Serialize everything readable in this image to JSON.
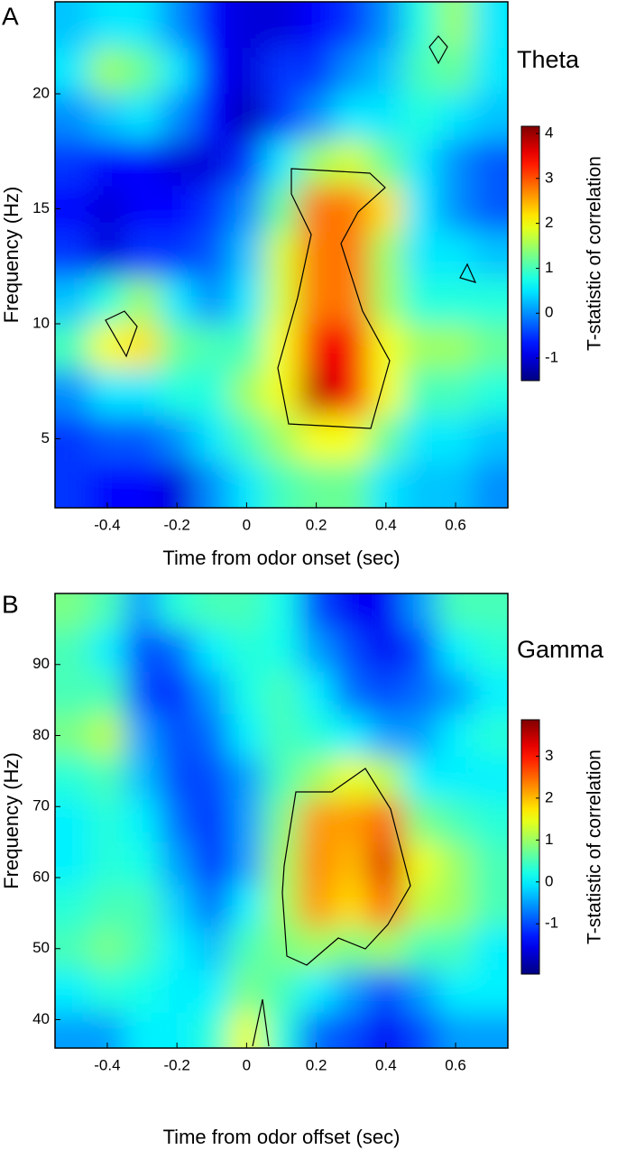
{
  "chart_data": [
    {
      "type": "heatmap",
      "panel": "A",
      "band_label": "Theta",
      "x_label": "Time from odor onset (sec)",
      "y_label": "Frequency (Hz)",
      "colorbar_label": "T-statistic of correlation",
      "colormap": "jet",
      "x": [
        -0.5,
        -0.4,
        -0.3,
        -0.2,
        -0.1,
        0,
        0.1,
        0.2,
        0.3,
        0.4,
        0.5,
        0.6,
        0.7
      ],
      "y": [
        23,
        21,
        19,
        17,
        15,
        13,
        11,
        9,
        7,
        5,
        3
      ],
      "z": [
        [
          0.3,
          0.5,
          0.5,
          0,
          -0.8,
          -1,
          -1,
          -0.8,
          -0.5,
          0,
          0.8,
          1.5,
          0.5
        ],
        [
          0.5,
          1.5,
          1.2,
          0.5,
          -0.8,
          -1,
          -0.5,
          -0.5,
          0,
          0.3,
          1,
          1.2,
          0.5
        ],
        [
          0,
          0.3,
          0.5,
          0,
          -0.8,
          -1.2,
          -0.5,
          0,
          0.5,
          0.5,
          0.8,
          0.5,
          0.3
        ],
        [
          -0.5,
          -0.8,
          -0.8,
          -1,
          -1,
          -0.5,
          0.5,
          1.5,
          1.8,
          1.2,
          0.5,
          0,
          -0.3
        ],
        [
          -0.8,
          -1,
          -0.8,
          -0.8,
          -0.5,
          0,
          1.2,
          2.8,
          2.8,
          2.2,
          0.5,
          0,
          -0.3
        ],
        [
          -0.5,
          -1,
          -0.5,
          -0.5,
          -0.3,
          0.3,
          1.8,
          2.8,
          2.8,
          1.5,
          0.5,
          0.5,
          0.3
        ],
        [
          0.3,
          0.8,
          1.5,
          0.5,
          0,
          0.5,
          1.8,
          2.8,
          2.8,
          1.5,
          0.8,
          0.8,
          0.8
        ],
        [
          1,
          2,
          2.2,
          1.2,
          1,
          1,
          2,
          3.5,
          3.5,
          2,
          1.5,
          1.5,
          1.2
        ],
        [
          0,
          0.5,
          0.5,
          0.8,
          0.8,
          1.5,
          2,
          3.8,
          3.5,
          2,
          1,
          1,
          0.8
        ],
        [
          -0.5,
          -0.3,
          -0.3,
          0,
          0.5,
          1,
          1.5,
          2,
          2,
          1.2,
          0.5,
          0.5,
          0.3
        ],
        [
          -0.5,
          -0.8,
          -0.8,
          -1,
          0,
          0.5,
          1,
          1.2,
          1.2,
          0.5,
          0.3,
          0.3,
          0
        ]
      ],
      "xlim": [
        -0.55,
        0.75
      ],
      "ylim": [
        2,
        24
      ],
      "xticks": [
        -0.4,
        -0.2,
        0,
        0.2,
        0.4,
        0.6
      ],
      "yticks": [
        5,
        10,
        15,
        20
      ],
      "clim": [
        -1.5,
        4.16
      ],
      "cticks": [
        -1,
        0,
        1,
        2,
        3,
        4
      ]
    },
    {
      "type": "heatmap",
      "panel": "B",
      "band_label": "Gamma",
      "x_label": "Time from odor offset (sec)",
      "y_label": "Frequency (Hz)",
      "colorbar_label": "T-statistic of correlation",
      "colormap": "jet",
      "x": [
        -0.5,
        -0.4,
        -0.3,
        -0.2,
        -0.1,
        0,
        0.1,
        0.2,
        0.3,
        0.4,
        0.5,
        0.6,
        0.7
      ],
      "y": [
        98,
        92,
        86,
        80,
        74,
        68,
        62,
        56,
        50,
        44,
        38
      ],
      "z": [
        [
          0.8,
          0.5,
          -0.5,
          0.3,
          0.5,
          0.5,
          0.2,
          -1,
          -1.5,
          -1.5,
          -0.5,
          0.5,
          0.5
        ],
        [
          0.5,
          0,
          -1,
          -0.8,
          0,
          0.3,
          0.2,
          -0.5,
          -1,
          -1.5,
          -1,
          0,
          0.3
        ],
        [
          0.5,
          0.5,
          -1,
          -1.2,
          -0.5,
          0.2,
          0.5,
          0,
          -0.8,
          -1,
          -0.8,
          -0.5,
          0
        ],
        [
          0.8,
          1.2,
          -0.5,
          -1,
          -0.8,
          0,
          0.5,
          0.3,
          0,
          -0.5,
          -0.5,
          0,
          0.3
        ],
        [
          0.3,
          0.5,
          -0.3,
          -1,
          -1,
          -0.5,
          0.5,
          1,
          1.5,
          1.2,
          0,
          0,
          0
        ],
        [
          0,
          0.3,
          0,
          -0.8,
          -1.2,
          -0.5,
          0.8,
          2.2,
          2.2,
          2.5,
          0.8,
          0.5,
          0.3
        ],
        [
          0,
          0.3,
          0.2,
          -0.5,
          -1.2,
          -0.5,
          1,
          2.3,
          2,
          3.3,
          1.5,
          1,
          0.5
        ],
        [
          0.3,
          0.5,
          0.5,
          -0.2,
          -0.8,
          0,
          1,
          2.2,
          1.8,
          2.5,
          1.2,
          1,
          0.5
        ],
        [
          0.5,
          0.8,
          0.5,
          0,
          -0.3,
          0.5,
          0.8,
          1,
          0.8,
          1,
          0.5,
          0.5,
          0
        ],
        [
          0,
          0.3,
          0.2,
          0,
          0,
          0.8,
          0.5,
          0,
          -0.5,
          -1,
          -0.5,
          0,
          0
        ],
        [
          -0.5,
          -0.5,
          0,
          0,
          0.3,
          1.5,
          0.3,
          -0.8,
          -1,
          -1.5,
          -1,
          -0.5,
          -0.5
        ]
      ],
      "xlim": [
        -0.55,
        0.75
      ],
      "ylim": [
        36,
        100
      ],
      "xticks": [
        -0.4,
        -0.2,
        0,
        0.2,
        0.4,
        0.6
      ],
      "yticks": [
        40,
        50,
        60,
        70,
        80,
        90
      ],
      "clim": [
        -2.2,
        3.87
      ],
      "cticks": [
        -1,
        0,
        1,
        2,
        3
      ]
    }
  ]
}
